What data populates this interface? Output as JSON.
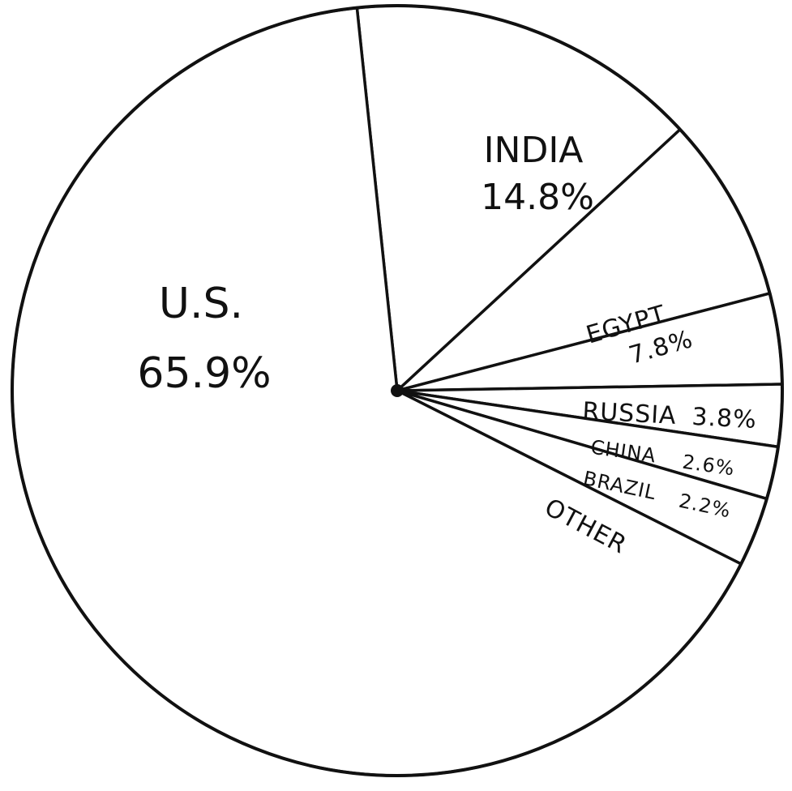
{
  "chart_data": {
    "type": "pie",
    "title": "",
    "slices": [
      {
        "label": "U.S.",
        "value": 65.9,
        "value_text": "65.9%"
      },
      {
        "label": "INDIA",
        "value": 14.8,
        "value_text": "14.8%"
      },
      {
        "label": "EGYPT",
        "value": 7.8,
        "value_text": "7.8%"
      },
      {
        "label": "RUSSIA",
        "value": 3.8,
        "value_text": "3.8%"
      },
      {
        "label": "CHINA",
        "value": 2.6,
        "value_text": "2.6%"
      },
      {
        "label": "BRAZIL",
        "value": 2.2,
        "value_text": "2.2%"
      },
      {
        "label": "OTHER",
        "value": 2.9,
        "value_text": ""
      }
    ],
    "colors": {
      "fill": "#ffffff",
      "stroke": "#111111"
    },
    "legend": "none",
    "labels": "inside slices"
  }
}
